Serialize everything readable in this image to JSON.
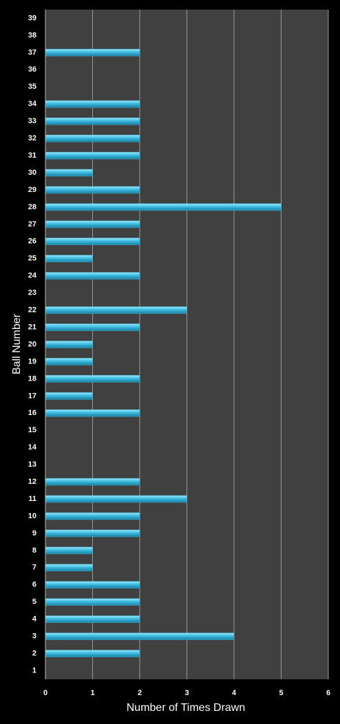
{
  "chart_data": {
    "type": "barh",
    "x_label": "Number of Times Drawn",
    "y_label": "Ball Number",
    "categories": [
      "1",
      "2",
      "3",
      "4",
      "5",
      "6",
      "7",
      "8",
      "9",
      "10",
      "11",
      "12",
      "13",
      "14",
      "15",
      "16",
      "17",
      "18",
      "19",
      "20",
      "21",
      "22",
      "23",
      "24",
      "25",
      "26",
      "27",
      "28",
      "29",
      "30",
      "31",
      "32",
      "33",
      "34",
      "35",
      "36",
      "37",
      "38",
      "39"
    ],
    "values": [
      0,
      2,
      4,
      2,
      2,
      2,
      1,
      1,
      2,
      2,
      3,
      2,
      0,
      0,
      0,
      2,
      1,
      2,
      1,
      1,
      2,
      3,
      0,
      2,
      1,
      2,
      2,
      5,
      2,
      1,
      2,
      2,
      2,
      2,
      0,
      0,
      2,
      0,
      0
    ],
    "color": "#3cbbe0",
    "xlim": [
      0,
      6
    ],
    "xticks": [
      0,
      1,
      2,
      3,
      4,
      5,
      6
    ],
    "grid": true
  }
}
